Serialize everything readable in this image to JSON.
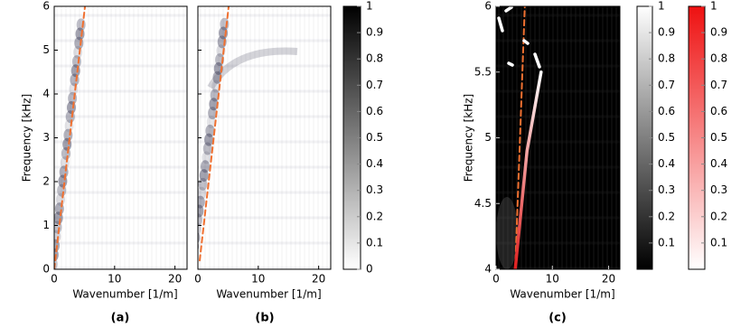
{
  "chart_data": [
    {
      "type": "heatmap",
      "label": "(a)",
      "xlabel": "Wavenumber [1/m]",
      "ylabel": "Frequency [kHz]",
      "xlim": [
        0,
        22
      ],
      "ylim": [
        0,
        6
      ],
      "xticks": [
        0,
        10,
        20
      ],
      "yticks": [
        0,
        1,
        2,
        3,
        4,
        5,
        6
      ],
      "ytick_labels": true,
      "background": "#ffffff",
      "lines": [
        {
          "color": "#f07030",
          "dashed": true,
          "x": [
            0,
            5.1
          ],
          "y": [
            0,
            6
          ]
        }
      ]
    },
    {
      "type": "heatmap",
      "label": "(b)",
      "xlabel": "Wavenumber [1/m]",
      "xlim": [
        0,
        22
      ],
      "ylim": [
        0,
        6
      ],
      "xticks": [
        0,
        10,
        20
      ],
      "yticks": [
        0,
        1,
        2,
        3,
        4,
        5,
        6
      ],
      "ytick_labels": false,
      "background": "#ffffff",
      "lines": [
        {
          "color": "#f07030",
          "dashed": true,
          "x": [
            0.3,
            5.1
          ],
          "y": [
            0.2,
            6
          ]
        }
      ]
    },
    {
      "type": "heatmap",
      "label": "(c)",
      "xlabel": "Wavenumber [1/m]",
      "ylabel": "Frequency [kHz]",
      "xlim": [
        0,
        22
      ],
      "ylim": [
        4,
        6
      ],
      "xticks": [
        0,
        10,
        20
      ],
      "yticks": [
        4,
        4.5,
        5,
        5.5,
        6
      ],
      "ytick_labels": true,
      "background": "#000000",
      "lines": [
        {
          "color": "#f07030",
          "dashed": true,
          "x": [
            3.4,
            5.1
          ],
          "y": [
            4,
            6
          ]
        },
        {
          "color": "#e02020",
          "dashed": false,
          "x": [
            3.4,
            5.5,
            8.0
          ],
          "y": [
            4,
            4.9,
            5.5
          ]
        }
      ]
    }
  ],
  "colorbars": [
    {
      "ylim": [
        0,
        1
      ],
      "yticks": [
        0,
        0.1,
        0.2,
        0.3,
        0.4,
        0.5,
        0.6,
        0.7,
        0.8,
        0.9,
        1
      ],
      "colors": [
        "#ffffff",
        "#000000"
      ]
    },
    {
      "ylim": [
        0,
        1
      ],
      "yticks": [
        0.1,
        0.2,
        0.3,
        0.4,
        0.5,
        0.6,
        0.7,
        0.8,
        0.9,
        1
      ],
      "colors": [
        "#000000",
        "#ffffff"
      ]
    },
    {
      "ylim": [
        0,
        1
      ],
      "yticks": [
        0.1,
        0.2,
        0.3,
        0.4,
        0.5,
        0.6,
        0.7,
        0.8,
        0.9,
        1
      ],
      "colors": [
        "#ffffff",
        "#ee1111"
      ]
    }
  ]
}
